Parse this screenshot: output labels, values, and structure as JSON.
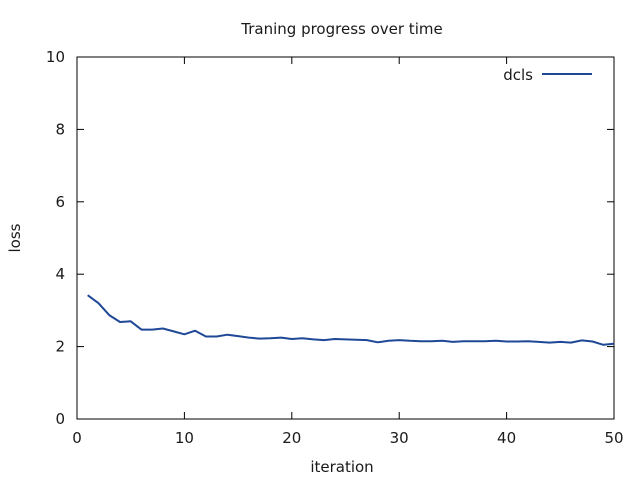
{
  "chart_data": {
    "type": "line",
    "title": "Traning progress over time",
    "xlabel": "iteration",
    "ylabel": "loss",
    "xlim": [
      0,
      50
    ],
    "ylim": [
      0,
      10
    ],
    "xticks": [
      0,
      10,
      20,
      30,
      40,
      50
    ],
    "yticks": [
      0,
      2,
      4,
      6,
      8,
      10
    ],
    "grid": false,
    "legend_position": "top-right",
    "series": [
      {
        "name": "dcls",
        "color": "#1f4896",
        "x": [
          1,
          2,
          3,
          4,
          5,
          6,
          7,
          8,
          9,
          10,
          11,
          12,
          13,
          14,
          15,
          16,
          17,
          18,
          19,
          20,
          21,
          22,
          23,
          24,
          25,
          26,
          27,
          28,
          29,
          30,
          31,
          32,
          33,
          34,
          35,
          36,
          37,
          38,
          39,
          40,
          41,
          42,
          43,
          44,
          45,
          46,
          47,
          48,
          49,
          50
        ],
        "values": [
          3.42,
          3.2,
          2.87,
          2.68,
          2.7,
          2.47,
          2.47,
          2.5,
          2.42,
          2.34,
          2.44,
          2.28,
          2.28,
          2.33,
          2.29,
          2.25,
          2.22,
          2.23,
          2.25,
          2.21,
          2.23,
          2.2,
          2.18,
          2.21,
          2.2,
          2.19,
          2.18,
          2.12,
          2.16,
          2.18,
          2.16,
          2.15,
          2.15,
          2.16,
          2.13,
          2.15,
          2.15,
          2.15,
          2.16,
          2.14,
          2.14,
          2.15,
          2.13,
          2.11,
          2.13,
          2.11,
          2.17,
          2.14,
          2.05,
          2.08
        ]
      }
    ]
  }
}
